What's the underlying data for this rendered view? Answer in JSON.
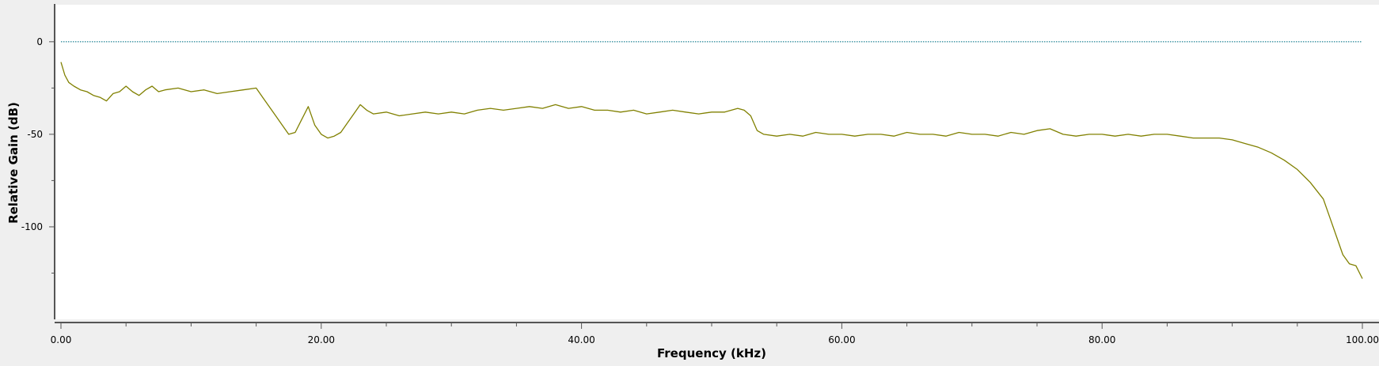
{
  "colors": {
    "background": "#efefef",
    "canvas": "#ffffff",
    "trace": "#808000",
    "reference_line": "#0f7a8c",
    "axis": "#555555"
  },
  "chart_data": {
    "type": "line",
    "title": "",
    "xlabel": "Frequency (kHz)",
    "ylabel": "Relative Gain (dB)",
    "xlim": [
      0,
      100
    ],
    "ylim": [
      -150,
      20
    ],
    "grid": false,
    "legend": "none",
    "x_ticks": [
      0,
      20,
      40,
      60,
      80,
      100
    ],
    "x_tick_labels": [
      "0.00",
      "20.00",
      "40.00",
      "60.00",
      "80.00",
      "100.00"
    ],
    "y_ticks": [
      0,
      -50,
      -100
    ],
    "y_tick_labels": [
      "0",
      "-50",
      "-100"
    ],
    "series": [
      {
        "x": [
          0,
          0.3,
          0.6,
          1.0,
          1.5,
          2.0,
          2.5,
          3.0,
          3.5,
          4.0,
          4.5,
          5.0,
          5.5,
          6.0,
          6.5,
          7.0,
          7.5,
          8.0,
          9.0,
          10.0,
          11.0,
          12.0,
          13.0,
          14.0,
          15.0,
          15.5,
          16.0,
          16.5,
          17.0,
          17.5,
          18.0,
          18.5,
          19.0,
          19.5,
          20.0,
          20.5,
          21.0,
          21.5,
          22.0,
          22.5,
          23.0,
          23.5,
          24.0,
          25.0,
          26.0,
          27.0,
          28.0,
          29.0,
          30.0,
          31.0,
          32.0,
          33.0,
          34.0,
          35.0,
          36.0,
          37.0,
          38.0,
          39.0,
          40.0,
          41.0,
          42.0,
          43.0,
          44.0,
          45.0,
          46.0,
          47.0,
          48.0,
          49.0,
          50.0,
          51.0,
          52.0,
          52.5,
          53.0,
          53.5,
          54.0,
          55.0,
          56.0,
          57.0,
          58.0,
          59.0,
          60.0,
          61.0,
          62.0,
          63.0,
          64.0,
          65.0,
          66.0,
          67.0,
          68.0,
          69.0,
          70.0,
          71.0,
          72.0,
          73.0,
          74.0,
          75.0,
          76.0,
          77.0,
          78.0,
          79.0,
          80.0,
          81.0,
          82.0,
          83.0,
          84.0,
          85.0,
          86.0,
          87.0,
          88.0,
          89.0,
          90.0,
          91.0,
          92.0,
          93.0,
          94.0,
          95.0,
          96.0,
          97.0,
          97.5,
          98.0,
          98.5,
          99.0,
          99.5,
          100.0
        ],
        "y": [
          -11,
          -18,
          -22,
          -24,
          -26,
          -27,
          -29,
          -30,
          -32,
          -28,
          -27,
          -24,
          -27,
          -29,
          -26,
          -24,
          -27,
          -26,
          -25,
          -27,
          -26,
          -28,
          -27,
          -26,
          -25,
          -30,
          -35,
          -40,
          -45,
          -50,
          -49,
          -42,
          -35,
          -45,
          -50,
          -52,
          -51,
          -49,
          -44,
          -39,
          -34,
          -37,
          -39,
          -38,
          -40,
          -39,
          -38,
          -39,
          -38,
          -39,
          -37,
          -36,
          -37,
          -36,
          -35,
          -36,
          -34,
          -36,
          -35,
          -37,
          -37,
          -38,
          -37,
          -39,
          -38,
          -37,
          -38,
          -39,
          -38,
          -38,
          -36,
          -37,
          -40,
          -48,
          -50,
          -51,
          -50,
          -51,
          -49,
          -50,
          -50,
          -51,
          -50,
          -50,
          -51,
          -49,
          -50,
          -50,
          -51,
          -49,
          -50,
          -50,
          -51,
          -49,
          -50,
          -48,
          -47,
          -50,
          -51,
          -50,
          -50,
          -51,
          -50,
          -51,
          -50,
          -50,
          -51,
          -52,
          -52,
          -52,
          -53,
          -55,
          -57,
          -60,
          -64,
          -69,
          -76,
          -85,
          -95,
          -105,
          -115,
          -120,
          -121,
          -128
        ]
      },
      {
        "x": [
          0,
          100
        ],
        "y": [
          0,
          0
        ]
      }
    ]
  }
}
